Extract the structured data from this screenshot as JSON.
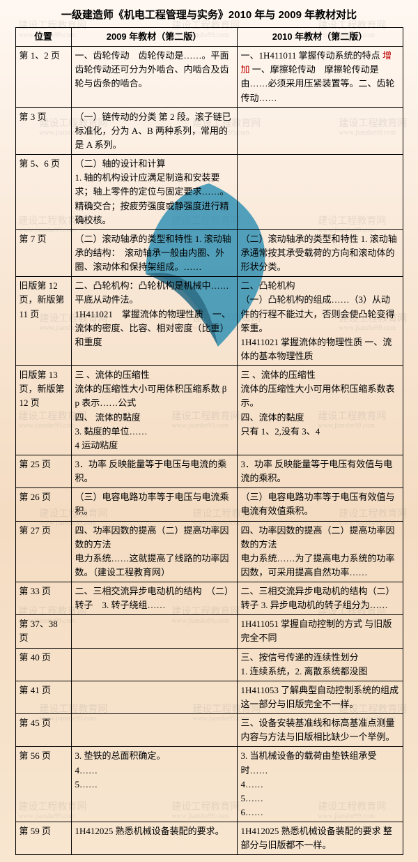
{
  "title": "一级建造师《机电工程管理与实务》2010 年与 2009 年教材对比",
  "headers": {
    "c0": "位置",
    "c1": "2009 年教材（第二版）",
    "c2": "2010 年教材（第二版）"
  },
  "accent_color": "#c00000",
  "watermark": {
    "text_cn": "建设工程教育网",
    "text_en": "www.jianshe99.com"
  },
  "rows": [
    {
      "pos": "第 1、2 页",
      "c1": "一、齿轮传动　齿轮传动是……。平面齿轮传动还可分为外啮合、内啮合及齿轮与齿条的啮合。",
      "c2_pre": "一、1H411011 掌握传动系统的特点 ",
      "c2_red": "增加",
      "c2_post": " 一、摩擦轮传动　摩擦轮传动是由……必须采用压紧装置等。二、齿轮传动……"
    },
    {
      "pos": "第 3 页",
      "c1": "（一）链传动的分类 第 2 段。滚子链已标准化，分为 A、B 两种系列，常用的是 A 系列。",
      "c2": ""
    },
    {
      "pos": "第 5、6 页",
      "c1": "（二）轴的设计和计算\n1. 轴的机构设计应满足制造和安装要求；轴上零件的定位与固定要求……。精确交合；按疲劳强度或静强度进行精确校核。",
      "c2": ""
    },
    {
      "pos": "第 7 页",
      "c1": "（二）滚动轴承的类型和特性 1. 滚动轴承的结构：　滚动轴承一般由内圈、外圈、滚动体和保持架组成。……",
      "c2": "（二）滚动轴承的类型和特性 1. 滚动轴承通常按其承受载荷的方向和滚动体的形状分类。"
    },
    {
      "pos": "旧版第 12 页，新版第 11 页",
      "c1": "二、凸轮机构：凸轮机构是机械中……平底从动件法。\n1H411021　掌握流体的物理性质　一、流体的密度、比容、相对密度（比重）和重度",
      "c2": "二、凸轮机构\n（一）凸轮机构的组成……（3）从动件的行程不能过大，否则会使凸轮变得笨重。\n1H411021 掌握流体的物理性质 一、流体的基本物理性质"
    },
    {
      "pos": "旧版第 13 页，新版第 12 页",
      "c1": "三 、流体的压缩性\n流体的压缩性大小可用体积压缩系数 β p 表示……公式\n四、 流体的黏度\n3. 黏度的单位……\n4 运动粘度",
      "c2": "三 、流体的压缩性\n流体的压缩性大小可用体积压缩系数表示。\n四、流体的黏度\n只有 1、2,没有 3、4"
    },
    {
      "pos": "第 25 页",
      "c1": "3．功率 反映能量等于电压与电流的乘积。",
      "c2": "3．功率 反映能量等于电压有效值与电流的乘积。"
    },
    {
      "pos": "第 26 页",
      "c1": "（三）电容电路功率等于电压与电流乘积。",
      "c2": "（三）电容电路功率等于电压有效值与电流有效值乘积。"
    },
    {
      "pos": "第 27 页",
      "c1": "四、功率因数的提高（二）提高功率因数的方法\n电力系统……这就提高了线路的功率因数。（建设工程教育网）",
      "c2": "四、功率因数的提高（二）提高功率因数的方法\n电力系统……为了提高电力系统的功率因数，可采用提高自然功率……"
    },
    {
      "pos": "第 33 页",
      "c1": "二、三相交流异步电动机的结构　（二）转子　3. 转子绕组……",
      "c2": "二、三相交流异步电动机的结构（二）转子 3. 异步电动机的转子组分为……"
    },
    {
      "pos": "第 37、38 页",
      "c1": "",
      "c2": "1H411051 掌握自动控制的方式 与旧版完全不同"
    },
    {
      "pos": "第 40 页",
      "c1": "",
      "c2": "三、按信号传递的连续性划分\n1. 连续系统，2. 离散系统都没图"
    },
    {
      "pos": "第 41 页",
      "c1": "",
      "c2": "1H411053 了解典型自动控制系统的组成 这一部分与旧版完全不一样。"
    },
    {
      "pos": "第 45 页",
      "c1": "",
      "c2": "三、设备安装基准线和标高基准点测量 内容与方法与旧版相比缺少一个举例。"
    },
    {
      "pos": "第 56 页",
      "c1": "3. 垫铁的总面积确定。\n4……\n5……",
      "c2": "3. 当机械设备的载荷由垫铁组承受时……\n4……\n5……\n6……"
    },
    {
      "pos": "第 59 页",
      "c1": "1H412025 熟悉机械设备装配的要求。",
      "c2": "1H412025 熟悉机械设备装配的要求 整部分与旧版都不一样。"
    }
  ]
}
